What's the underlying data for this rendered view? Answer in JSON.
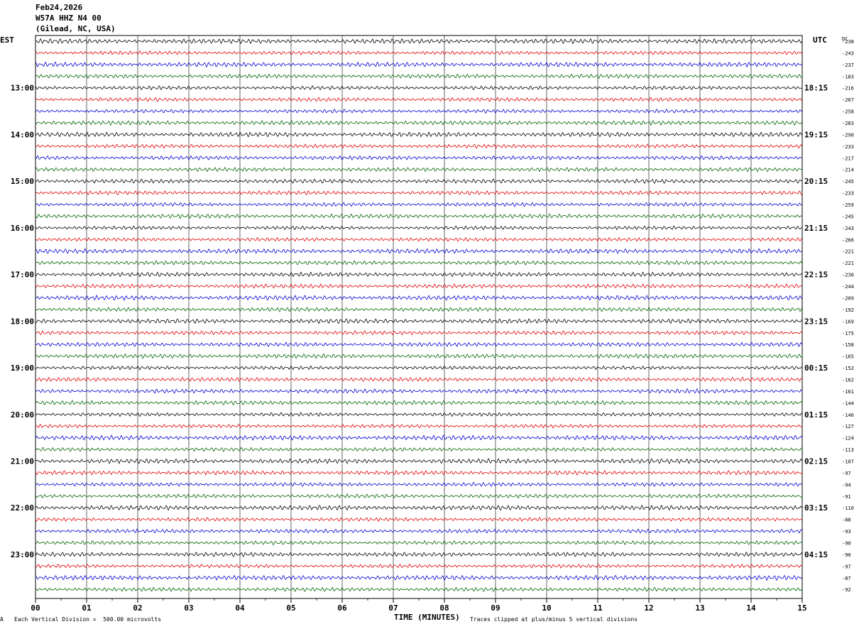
{
  "header": {
    "date": "Feb24,2026",
    "station": "W57A HHZ N4 00",
    "location": "(Gilead, NC, USA)"
  },
  "left_tz": "EST",
  "right_tz": "UTC",
  "dc_label": "DC",
  "footer": {
    "division_note": "Each Vertical Division =  500.00 microvolts",
    "clip_note": "Traces clipped at plus/minus 5 vertical divisions",
    "corner_mark": "A"
  },
  "chart_data": {
    "type": "line",
    "title": "",
    "xlabel": "TIME (MINUTES)",
    "ylabel": "",
    "xlim": [
      0,
      15
    ],
    "x_ticks": [
      "00",
      "01",
      "02",
      "03",
      "04",
      "05",
      "06",
      "07",
      "08",
      "09",
      "10",
      "11",
      "12",
      "13",
      "14",
      "15"
    ],
    "grid": true,
    "trace_colors": [
      "#000000",
      "#e00000",
      "#0000d0",
      "#006400"
    ],
    "left_hour_labels": [
      "13:00",
      "14:00",
      "15:00",
      "16:00",
      "17:00",
      "18:00",
      "19:00",
      "20:00",
      "21:00",
      "22:00",
      "23:00"
    ],
    "right_hour_labels": [
      "18:15",
      "19:15",
      "20:15",
      "21:15",
      "22:15",
      "23:15",
      "00:15",
      "01:15",
      "02:15",
      "03:15",
      "04:15"
    ],
    "trace_dc_offsets": [
      -238,
      -243,
      -237,
      -183,
      -216,
      -267,
      -258,
      -283,
      -290,
      -233,
      -217,
      -214,
      -245,
      -233,
      -259,
      -245,
      -243,
      -266,
      -221,
      -221,
      -230,
      -244,
      -209,
      -192,
      -169,
      -175,
      -158,
      -165,
      -152,
      -162,
      -161,
      -144,
      -146,
      -127,
      -124,
      -113,
      -107,
      -97,
      -94,
      -91,
      -110,
      -88,
      -93,
      -90,
      -90,
      -97,
      -87,
      -92
    ]
  }
}
